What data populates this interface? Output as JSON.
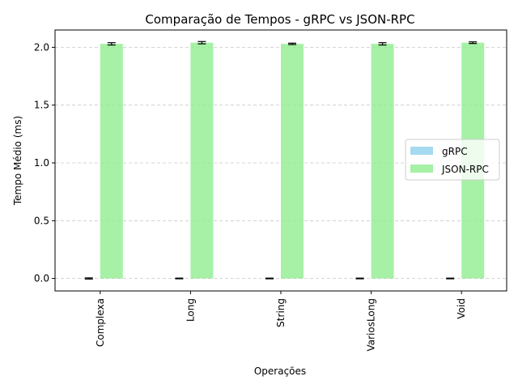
{
  "chart_data": {
    "type": "bar",
    "title": "Comparação de Tempos - gRPC vs JSON-RPC",
    "xlabel": "Operações",
    "ylabel": "Tempo Médio (ms)",
    "categories": [
      "Complexa",
      "Long",
      "String",
      "VariosLong",
      "Void"
    ],
    "series": [
      {
        "name": "gRPC",
        "color": "#87ceeb",
        "values": [
          0.0,
          0.0,
          0.0,
          0.0,
          0.0
        ],
        "errors": [
          0.005,
          0.003,
          0.003,
          0.003,
          0.003
        ]
      },
      {
        "name": "JSON-RPC",
        "color": "#90ee90",
        "values": [
          2.03,
          2.04,
          2.03,
          2.03,
          2.04
        ],
        "errors": [
          0.01,
          0.01,
          0.006,
          0.01,
          0.007
        ]
      }
    ],
    "ylim": [
      -0.108,
      2.15
    ],
    "yticks": [
      0.0,
      0.5,
      1.0,
      1.5,
      2.0
    ],
    "ytick_labels": [
      "0.0",
      "0.5",
      "1.0",
      "1.5",
      "2.0"
    ],
    "grid": "y-dashed",
    "legend_position": "center-right"
  }
}
